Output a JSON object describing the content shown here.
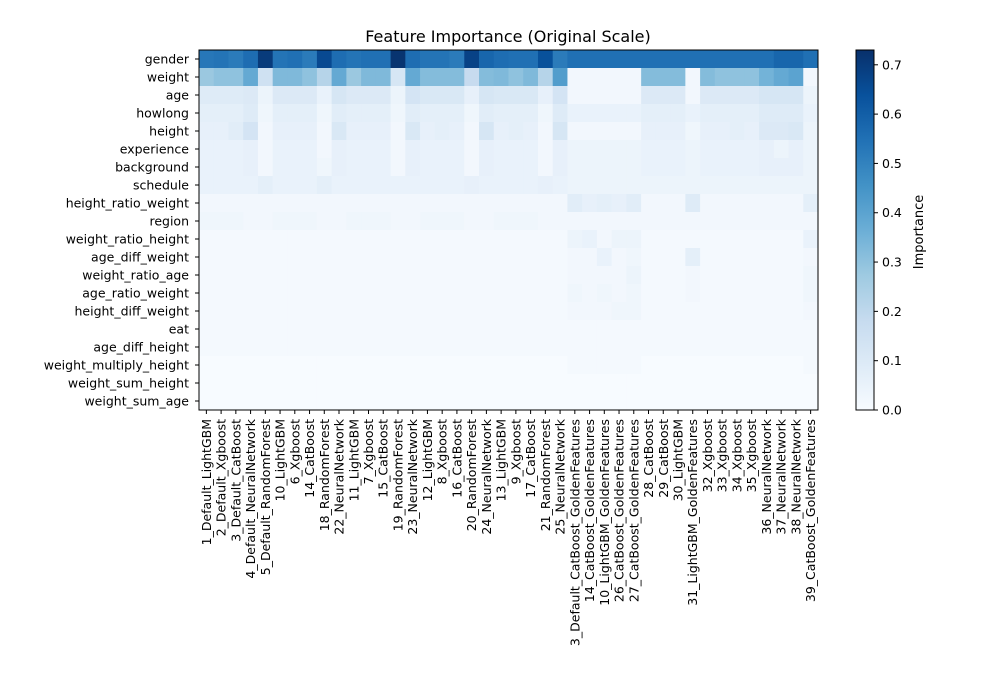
{
  "chart_data": {
    "type": "heatmap",
    "title": "Feature Importance (Original Scale)",
    "colorbar_label": "Importance",
    "colorbar_ticks": [
      "0.0",
      "0.1",
      "0.2",
      "0.3",
      "0.4",
      "0.5",
      "0.6",
      "0.7"
    ],
    "vmin": 0.0,
    "vmax": 0.73,
    "colormap": [
      "#f7fbff",
      "#deebf7",
      "#c6dbef",
      "#9ecae1",
      "#6baed6",
      "#4292c6",
      "#2171b5",
      "#08519c",
      "#08306b"
    ],
    "features": [
      "gender",
      "weight",
      "age",
      "howlong",
      "height",
      "experience",
      "background",
      "schedule",
      "height_ratio_weight",
      "region",
      "weight_ratio_height",
      "age_diff_weight",
      "weight_ratio_age",
      "age_ratio_weight",
      "height_diff_weight",
      "eat",
      "age_diff_height",
      "weight_multiply_height",
      "weight_sum_height",
      "weight_sum_age"
    ],
    "models": [
      "1_Default_LightGBM",
      "2_Default_Xgboost",
      "3_Default_CatBoost",
      "4_Default_NeuralNetwork",
      "5_Default_RandomForest",
      "10_LightGBM",
      "6_Xgboost",
      "14_CatBoost",
      "18_RandomForest",
      "22_NeuralNetwork",
      "11_LightGBM",
      "7_Xgboost",
      "15_CatBoost",
      "19_RandomForest",
      "23_NeuralNetwork",
      "12_LightGBM",
      "8_Xgboost",
      "16_CatBoost",
      "20_RandomForest",
      "24_NeuralNetwork",
      "13_LightGBM",
      "9_Xgboost",
      "17_CatBoost",
      "21_RandomForest",
      "25_NeuralNetwork",
      "3_Default_CatBoost_GoldenFeatures",
      "14_CatBoost_GoldenFeatures",
      "10_LightGBM_GoldenFeatures",
      "26_CatBoost_GoldenFeatures",
      "27_CatBoost_GoldenFeatures",
      "28_CatBoost",
      "29_CatBoost",
      "30_LightGBM",
      "31_LightGBM_GoldenFeatures",
      "32_Xgboost",
      "33_Xgboost",
      "34_Xgboost",
      "35_Xgboost",
      "36_NeuralNetwork",
      "37_NeuralNetwork",
      "38_NeuralNetwork",
      "39_CatBoost_GoldenFeatures"
    ],
    "values": [
      [
        0.53,
        0.54,
        0.52,
        0.56,
        0.7,
        0.54,
        0.55,
        0.52,
        0.66,
        0.56,
        0.54,
        0.55,
        0.55,
        0.72,
        0.56,
        0.54,
        0.54,
        0.52,
        0.68,
        0.58,
        0.56,
        0.55,
        0.55,
        0.64,
        0.52,
        0.55,
        0.55,
        0.55,
        0.55,
        0.55,
        0.55,
        0.55,
        0.55,
        0.55,
        0.55,
        0.55,
        0.55,
        0.55,
        0.55,
        0.58,
        0.58,
        0.55
      ],
      [
        0.28,
        0.3,
        0.3,
        0.38,
        0.15,
        0.33,
        0.33,
        0.3,
        0.22,
        0.38,
        0.28,
        0.33,
        0.33,
        0.12,
        0.38,
        0.32,
        0.32,
        0.32,
        0.18,
        0.32,
        0.33,
        0.3,
        0.33,
        0.22,
        0.42,
        0.02,
        0.02,
        0.02,
        0.02,
        0.02,
        0.32,
        0.32,
        0.32,
        0.02,
        0.32,
        0.3,
        0.3,
        0.3,
        0.35,
        0.38,
        0.4,
        0.02
      ],
      [
        0.09,
        0.09,
        0.09,
        0.1,
        0.04,
        0.1,
        0.1,
        0.1,
        0.05,
        0.12,
        0.1,
        0.1,
        0.1,
        0.04,
        0.13,
        0.11,
        0.11,
        0.11,
        0.06,
        0.12,
        0.11,
        0.11,
        0.11,
        0.06,
        0.13,
        0.02,
        0.02,
        0.02,
        0.02,
        0.02,
        0.1,
        0.1,
        0.1,
        0.02,
        0.1,
        0.1,
        0.1,
        0.1,
        0.12,
        0.12,
        0.12,
        0.04
      ],
      [
        0.07,
        0.07,
        0.07,
        0.09,
        0.03,
        0.07,
        0.07,
        0.07,
        0.03,
        0.08,
        0.07,
        0.07,
        0.07,
        0.03,
        0.08,
        0.07,
        0.07,
        0.07,
        0.03,
        0.08,
        0.07,
        0.07,
        0.07,
        0.03,
        0.09,
        0.05,
        0.05,
        0.05,
        0.05,
        0.05,
        0.07,
        0.07,
        0.07,
        0.05,
        0.07,
        0.07,
        0.07,
        0.07,
        0.09,
        0.09,
        0.09,
        0.05
      ],
      [
        0.06,
        0.06,
        0.08,
        0.13,
        0.02,
        0.06,
        0.06,
        0.06,
        0.02,
        0.11,
        0.06,
        0.06,
        0.06,
        0.02,
        0.11,
        0.06,
        0.07,
        0.06,
        0.02,
        0.12,
        0.06,
        0.07,
        0.06,
        0.02,
        0.12,
        0.02,
        0.02,
        0.02,
        0.02,
        0.02,
        0.06,
        0.06,
        0.06,
        0.03,
        0.06,
        0.06,
        0.07,
        0.06,
        0.1,
        0.1,
        0.11,
        0.04
      ],
      [
        0.05,
        0.05,
        0.05,
        0.06,
        0.02,
        0.05,
        0.05,
        0.05,
        0.02,
        0.06,
        0.05,
        0.05,
        0.05,
        0.02,
        0.06,
        0.05,
        0.05,
        0.05,
        0.02,
        0.06,
        0.05,
        0.05,
        0.05,
        0.02,
        0.06,
        0.04,
        0.04,
        0.04,
        0.04,
        0.04,
        0.05,
        0.05,
        0.05,
        0.04,
        0.05,
        0.05,
        0.05,
        0.05,
        0.06,
        0.04,
        0.06,
        0.04
      ],
      [
        0.05,
        0.05,
        0.05,
        0.06,
        0.02,
        0.05,
        0.05,
        0.05,
        0.03,
        0.06,
        0.05,
        0.05,
        0.05,
        0.02,
        0.06,
        0.05,
        0.05,
        0.05,
        0.02,
        0.06,
        0.05,
        0.05,
        0.05,
        0.02,
        0.06,
        0.04,
        0.04,
        0.04,
        0.04,
        0.04,
        0.05,
        0.05,
        0.05,
        0.04,
        0.05,
        0.05,
        0.05,
        0.05,
        0.06,
        0.06,
        0.06,
        0.04
      ],
      [
        0.05,
        0.05,
        0.05,
        0.05,
        0.07,
        0.05,
        0.05,
        0.05,
        0.07,
        0.05,
        0.05,
        0.05,
        0.05,
        0.05,
        0.05,
        0.05,
        0.05,
        0.05,
        0.06,
        0.05,
        0.05,
        0.05,
        0.05,
        0.06,
        0.05,
        0.04,
        0.04,
        0.04,
        0.04,
        0.04,
        0.04,
        0.04,
        0.04,
        0.04,
        0.04,
        0.04,
        0.04,
        0.04,
        0.04,
        0.04,
        0.04,
        0.04
      ],
      [
        0.02,
        0.02,
        0.02,
        0.02,
        0.02,
        0.02,
        0.02,
        0.02,
        0.02,
        0.02,
        0.02,
        0.02,
        0.02,
        0.02,
        0.02,
        0.02,
        0.02,
        0.02,
        0.02,
        0.02,
        0.02,
        0.02,
        0.02,
        0.02,
        0.02,
        0.08,
        0.06,
        0.07,
        0.06,
        0.08,
        0.02,
        0.02,
        0.02,
        0.09,
        0.02,
        0.02,
        0.02,
        0.02,
        0.02,
        0.02,
        0.02,
        0.07
      ],
      [
        0.03,
        0.03,
        0.03,
        0.02,
        0.02,
        0.03,
        0.03,
        0.03,
        0.02,
        0.02,
        0.03,
        0.03,
        0.03,
        0.02,
        0.02,
        0.03,
        0.03,
        0.03,
        0.02,
        0.02,
        0.03,
        0.03,
        0.03,
        0.02,
        0.02,
        0.02,
        0.02,
        0.02,
        0.02,
        0.02,
        0.02,
        0.02,
        0.02,
        0.02,
        0.02,
        0.02,
        0.02,
        0.02,
        0.02,
        0.02,
        0.02,
        0.02
      ],
      [
        0.01,
        0.01,
        0.01,
        0.01,
        0.01,
        0.01,
        0.01,
        0.01,
        0.01,
        0.01,
        0.01,
        0.01,
        0.01,
        0.01,
        0.01,
        0.01,
        0.01,
        0.01,
        0.01,
        0.01,
        0.01,
        0.01,
        0.01,
        0.01,
        0.01,
        0.04,
        0.05,
        0.02,
        0.04,
        0.04,
        0.01,
        0.01,
        0.01,
        0.01,
        0.01,
        0.01,
        0.01,
        0.01,
        0.01,
        0.01,
        0.01,
        0.05
      ],
      [
        0.01,
        0.01,
        0.01,
        0.01,
        0.01,
        0.01,
        0.01,
        0.01,
        0.01,
        0.01,
        0.01,
        0.01,
        0.01,
        0.01,
        0.01,
        0.01,
        0.01,
        0.01,
        0.01,
        0.01,
        0.01,
        0.01,
        0.01,
        0.01,
        0.01,
        0.02,
        0.02,
        0.05,
        0.02,
        0.03,
        0.01,
        0.01,
        0.01,
        0.07,
        0.01,
        0.01,
        0.01,
        0.01,
        0.01,
        0.01,
        0.01,
        0.02
      ],
      [
        0.01,
        0.01,
        0.01,
        0.01,
        0.01,
        0.01,
        0.01,
        0.01,
        0.01,
        0.01,
        0.01,
        0.01,
        0.01,
        0.01,
        0.01,
        0.01,
        0.01,
        0.01,
        0.01,
        0.01,
        0.01,
        0.01,
        0.01,
        0.01,
        0.01,
        0.02,
        0.02,
        0.02,
        0.02,
        0.04,
        0.01,
        0.01,
        0.01,
        0.02,
        0.01,
        0.01,
        0.01,
        0.01,
        0.01,
        0.01,
        0.01,
        0.03
      ],
      [
        0.01,
        0.01,
        0.01,
        0.01,
        0.01,
        0.01,
        0.01,
        0.01,
        0.01,
        0.01,
        0.01,
        0.01,
        0.01,
        0.01,
        0.01,
        0.01,
        0.01,
        0.01,
        0.01,
        0.01,
        0.01,
        0.01,
        0.01,
        0.01,
        0.01,
        0.03,
        0.02,
        0.03,
        0.02,
        0.03,
        0.01,
        0.01,
        0.01,
        0.02,
        0.01,
        0.01,
        0.01,
        0.01,
        0.01,
        0.01,
        0.01,
        0.03
      ],
      [
        0.01,
        0.01,
        0.01,
        0.01,
        0.01,
        0.01,
        0.01,
        0.01,
        0.01,
        0.01,
        0.01,
        0.01,
        0.01,
        0.01,
        0.01,
        0.01,
        0.01,
        0.01,
        0.01,
        0.01,
        0.01,
        0.01,
        0.01,
        0.01,
        0.01,
        0.02,
        0.02,
        0.02,
        0.03,
        0.03,
        0.01,
        0.01,
        0.01,
        0.01,
        0.01,
        0.01,
        0.01,
        0.01,
        0.01,
        0.01,
        0.01,
        0.02
      ],
      [
        0.01,
        0.01,
        0.01,
        0.01,
        0.01,
        0.01,
        0.01,
        0.01,
        0.01,
        0.01,
        0.01,
        0.01,
        0.01,
        0.01,
        0.01,
        0.01,
        0.01,
        0.01,
        0.01,
        0.01,
        0.01,
        0.01,
        0.01,
        0.01,
        0.01,
        0.01,
        0.01,
        0.01,
        0.01,
        0.01,
        0.01,
        0.01,
        0.01,
        0.01,
        0.01,
        0.01,
        0.01,
        0.01,
        0.01,
        0.01,
        0.01,
        0.01
      ],
      [
        0.01,
        0.01,
        0.01,
        0.01,
        0.01,
        0.01,
        0.01,
        0.01,
        0.01,
        0.01,
        0.01,
        0.01,
        0.01,
        0.01,
        0.01,
        0.01,
        0.01,
        0.01,
        0.01,
        0.01,
        0.01,
        0.01,
        0.01,
        0.01,
        0.01,
        0.01,
        0.01,
        0.01,
        0.01,
        0.01,
        0.01,
        0.01,
        0.01,
        0.01,
        0.01,
        0.01,
        0.01,
        0.01,
        0.01,
        0.01,
        0.01,
        0.01
      ],
      [
        0.0,
        0.0,
        0.0,
        0.0,
        0.0,
        0.0,
        0.0,
        0.0,
        0.0,
        0.0,
        0.0,
        0.0,
        0.0,
        0.0,
        0.0,
        0.0,
        0.0,
        0.0,
        0.0,
        0.0,
        0.0,
        0.0,
        0.0,
        0.0,
        0.0,
        0.01,
        0.01,
        0.01,
        0.01,
        0.01,
        0.0,
        0.0,
        0.0,
        0.0,
        0.0,
        0.0,
        0.0,
        0.0,
        0.0,
        0.0,
        0.0,
        0.01
      ],
      [
        0.0,
        0.0,
        0.0,
        0.0,
        0.0,
        0.0,
        0.0,
        0.0,
        0.0,
        0.0,
        0.0,
        0.0,
        0.0,
        0.0,
        0.0,
        0.0,
        0.0,
        0.0,
        0.0,
        0.0,
        0.0,
        0.0,
        0.0,
        0.0,
        0.0,
        0.0,
        0.0,
        0.0,
        0.0,
        0.0,
        0.0,
        0.0,
        0.0,
        0.0,
        0.0,
        0.0,
        0.0,
        0.0,
        0.0,
        0.0,
        0.0,
        0.0
      ],
      [
        0.0,
        0.0,
        0.0,
        0.0,
        0.0,
        0.0,
        0.0,
        0.0,
        0.0,
        0.0,
        0.0,
        0.0,
        0.0,
        0.0,
        0.0,
        0.0,
        0.0,
        0.0,
        0.0,
        0.0,
        0.0,
        0.0,
        0.0,
        0.0,
        0.0,
        0.0,
        0.0,
        0.0,
        0.0,
        0.0,
        0.0,
        0.0,
        0.0,
        0.0,
        0.0,
        0.0,
        0.0,
        0.0,
        0.0,
        0.0,
        0.0,
        0.0
      ]
    ]
  }
}
